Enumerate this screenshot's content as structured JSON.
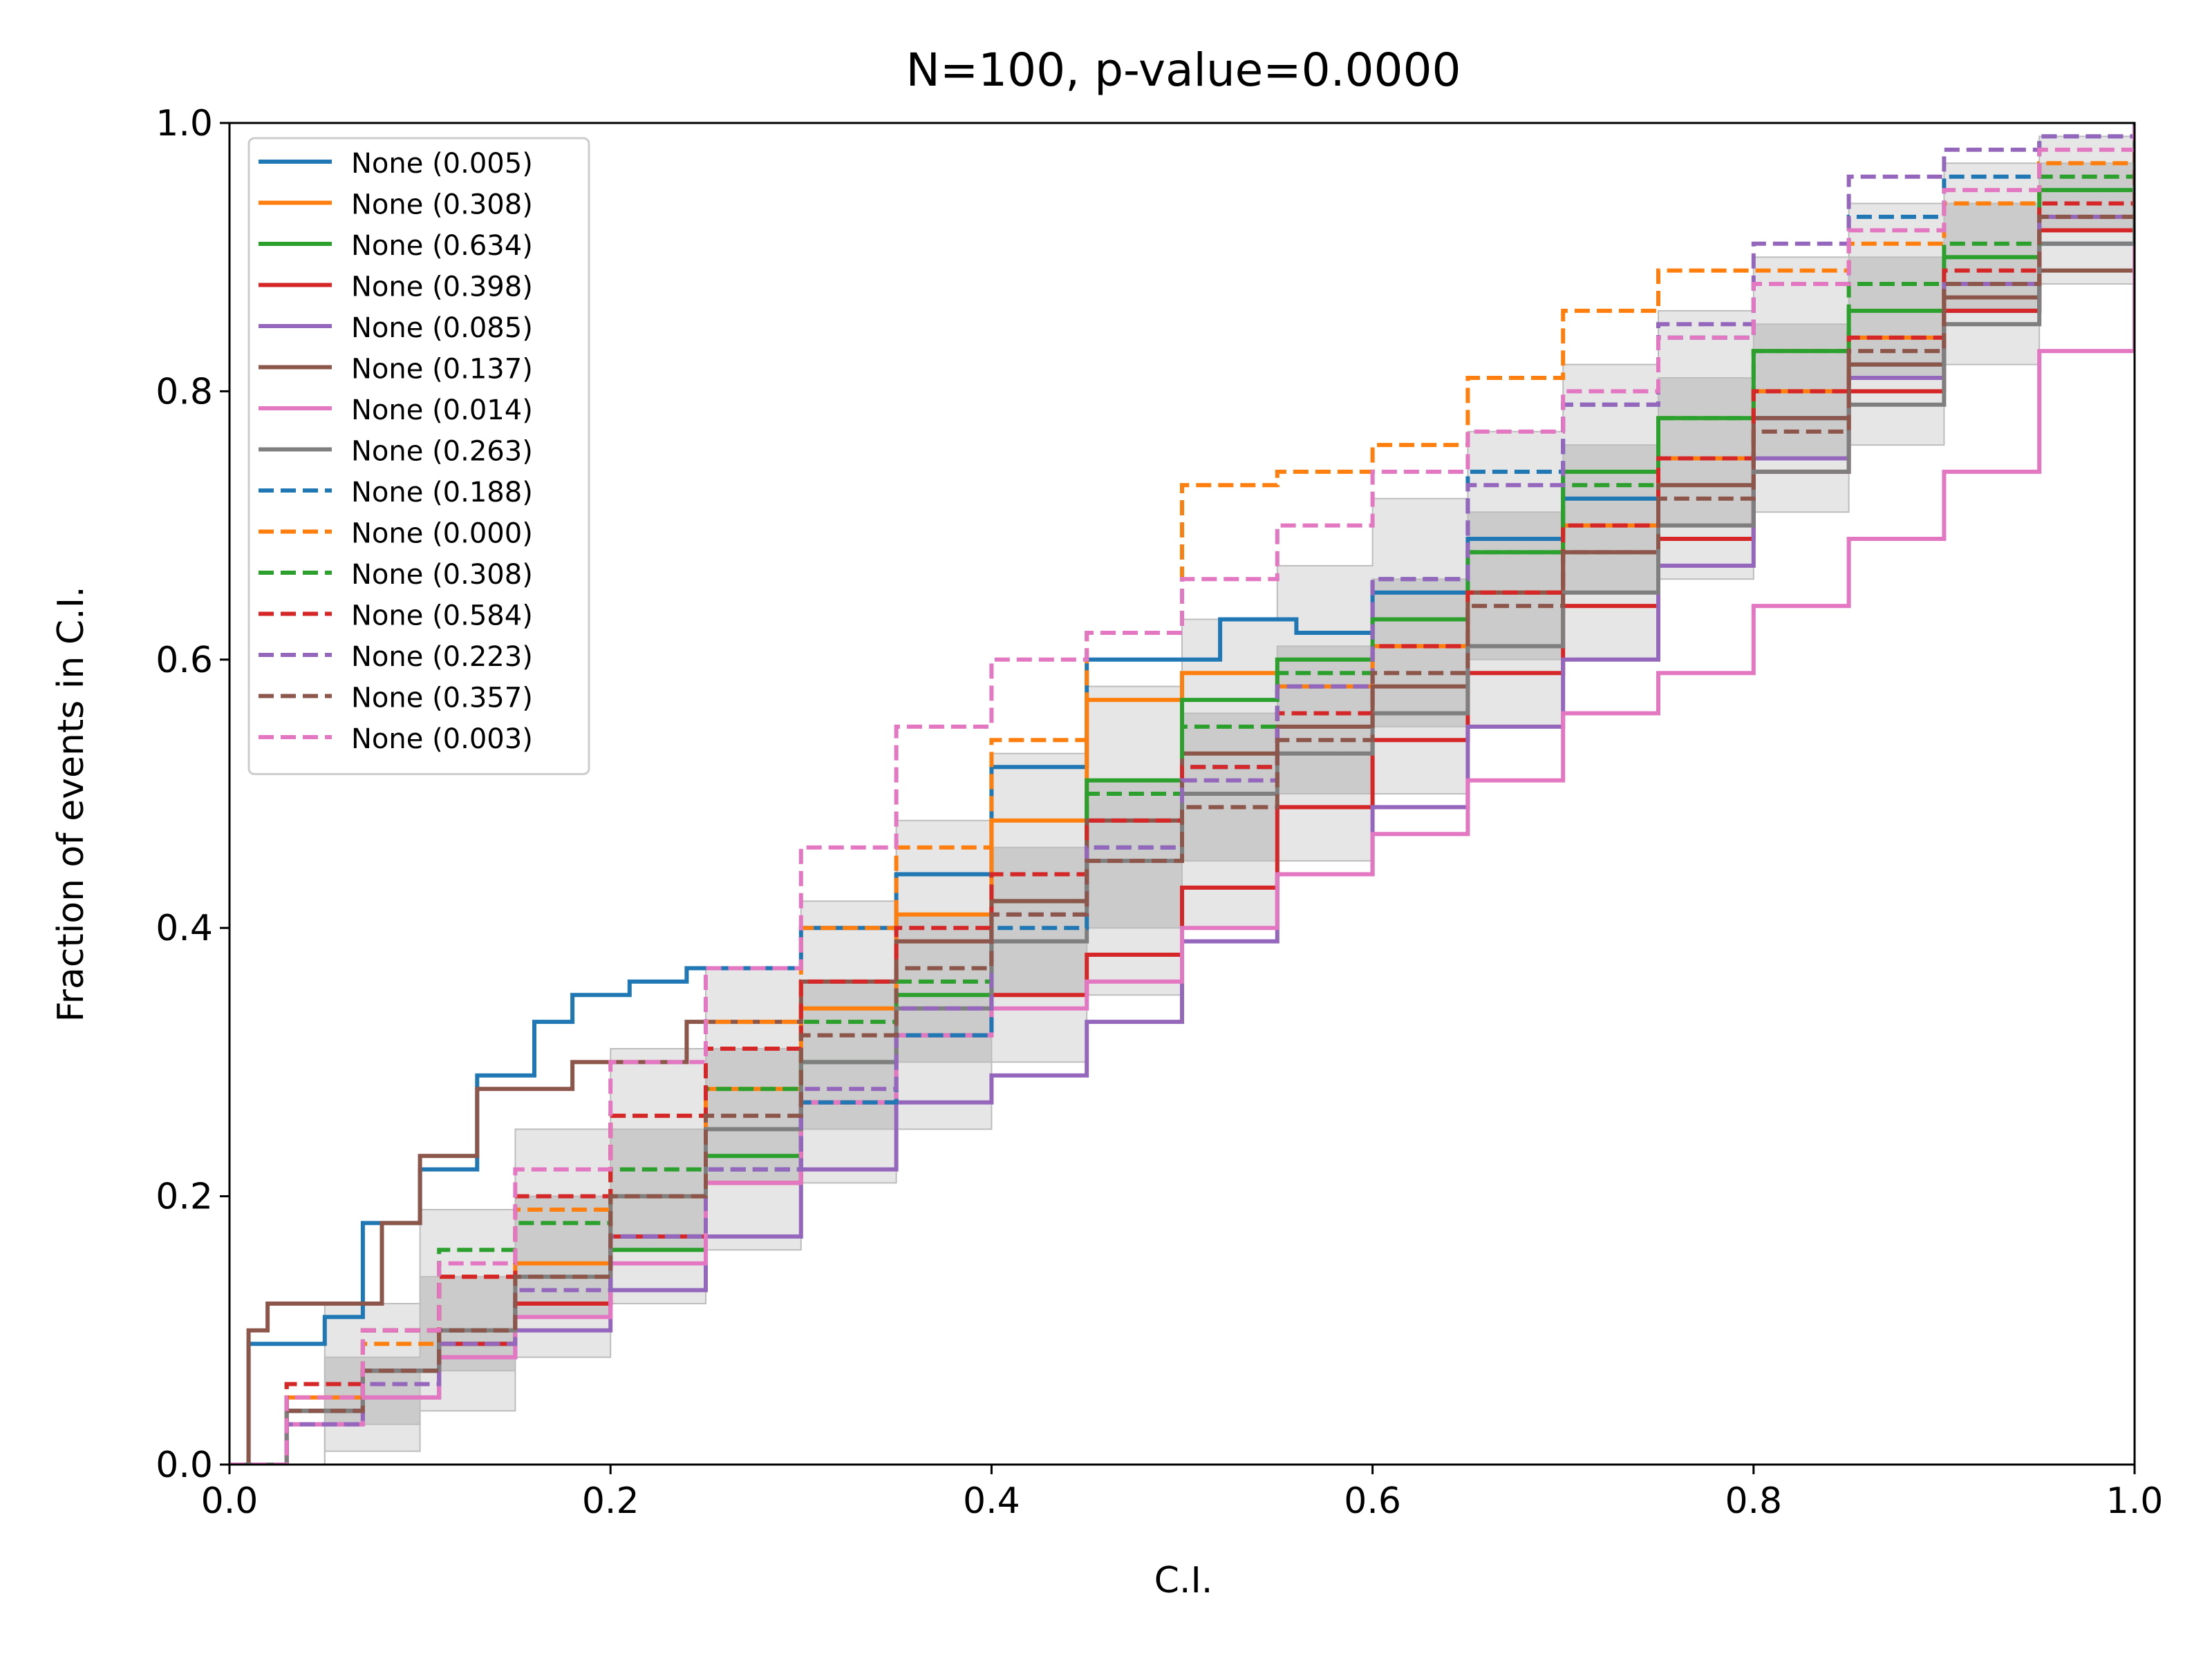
{
  "chart_data": {
    "type": "line",
    "title": "N=100, p-value=0.0000",
    "xlabel": "C.I.",
    "ylabel": "Fraction of events in C.I.",
    "xlim": [
      0,
      1
    ],
    "ylim": [
      0,
      1
    ],
    "xticks": [
      "0.0",
      "0.2",
      "0.4",
      "0.6",
      "0.8",
      "1.0"
    ],
    "yticks": [
      "0.0",
      "0.2",
      "0.4",
      "0.6",
      "0.8",
      "1.0"
    ],
    "grid": false,
    "legend_position": "upper-left",
    "confidence_bands": [
      {
        "level": "outer",
        "color": "#e6e6e6",
        "x": [
          0,
          0.05,
          0.1,
          0.15,
          0.2,
          0.25,
          0.3,
          0.35,
          0.4,
          0.45,
          0.5,
          0.55,
          0.6,
          0.65,
          0.7,
          0.75,
          0.8,
          0.85,
          0.9,
          0.95,
          1.0
        ],
        "lower": [
          0,
          0.01,
          0.04,
          0.08,
          0.12,
          0.16,
          0.21,
          0.25,
          0.3,
          0.35,
          0.4,
          0.45,
          0.5,
          0.55,
          0.6,
          0.66,
          0.71,
          0.76,
          0.82,
          0.88,
          1.0
        ],
        "upper": [
          0,
          0.12,
          0.19,
          0.25,
          0.31,
          0.37,
          0.42,
          0.48,
          0.53,
          0.58,
          0.63,
          0.67,
          0.72,
          0.77,
          0.82,
          0.86,
          0.9,
          0.94,
          0.97,
          0.99,
          1.0
        ]
      },
      {
        "level": "inner",
        "color": "#c8c8c8",
        "x": [
          0,
          0.05,
          0.1,
          0.15,
          0.2,
          0.25,
          0.3,
          0.35,
          0.4,
          0.45,
          0.5,
          0.55,
          0.6,
          0.65,
          0.7,
          0.75,
          0.8,
          0.85,
          0.9,
          0.95,
          1.0
        ],
        "lower": [
          0,
          0.03,
          0.07,
          0.11,
          0.16,
          0.21,
          0.25,
          0.3,
          0.35,
          0.4,
          0.45,
          0.5,
          0.55,
          0.6,
          0.65,
          0.7,
          0.75,
          0.81,
          0.86,
          0.92,
          1.0
        ],
        "upper": [
          0,
          0.08,
          0.14,
          0.2,
          0.25,
          0.31,
          0.36,
          0.41,
          0.46,
          0.51,
          0.56,
          0.61,
          0.66,
          0.71,
          0.76,
          0.81,
          0.85,
          0.9,
          0.94,
          0.97,
          1.0
        ]
      }
    ],
    "series": [
      {
        "name": "None (0.005)",
        "color": "#1f77b4",
        "dash": false,
        "x": [
          0,
          0.01,
          0.02,
          0.05,
          0.07,
          0.1,
          0.13,
          0.16,
          0.18,
          0.21,
          0.24,
          0.3,
          0.35,
          0.4,
          0.45,
          0.52,
          0.56,
          0.6,
          0.65,
          0.7,
          0.75,
          0.8,
          0.85,
          0.9,
          0.95,
          1.0
        ],
        "y": [
          0,
          0.09,
          0.09,
          0.11,
          0.18,
          0.22,
          0.29,
          0.33,
          0.35,
          0.36,
          0.37,
          0.4,
          0.44,
          0.52,
          0.6,
          0.63,
          0.62,
          0.65,
          0.69,
          0.72,
          0.75,
          0.78,
          0.82,
          0.86,
          0.91,
          1.0
        ]
      },
      {
        "name": "None (0.308)",
        "color": "#ff7f0e",
        "dash": false,
        "x": [
          0,
          0.03,
          0.07,
          0.11,
          0.15,
          0.2,
          0.25,
          0.3,
          0.35,
          0.4,
          0.45,
          0.5,
          0.55,
          0.6,
          0.65,
          0.7,
          0.75,
          0.8,
          0.85,
          0.9,
          0.95,
          1.0
        ],
        "y": [
          0,
          0.05,
          0.07,
          0.1,
          0.15,
          0.2,
          0.28,
          0.34,
          0.41,
          0.48,
          0.57,
          0.59,
          0.58,
          0.61,
          0.65,
          0.7,
          0.75,
          0.8,
          0.84,
          0.88,
          0.93,
          1.0
        ]
      },
      {
        "name": "None (0.634)",
        "color": "#2ca02c",
        "dash": false,
        "x": [
          0,
          0.03,
          0.07,
          0.11,
          0.15,
          0.2,
          0.25,
          0.3,
          0.35,
          0.4,
          0.45,
          0.5,
          0.55,
          0.6,
          0.65,
          0.7,
          0.75,
          0.8,
          0.85,
          0.9,
          0.95,
          1.0
        ],
        "y": [
          0,
          0.04,
          0.07,
          0.09,
          0.12,
          0.16,
          0.23,
          0.3,
          0.35,
          0.42,
          0.51,
          0.57,
          0.6,
          0.63,
          0.68,
          0.74,
          0.78,
          0.83,
          0.86,
          0.9,
          0.95,
          1.0
        ]
      },
      {
        "name": "None (0.398)",
        "color": "#d62728",
        "dash": false,
        "x": [
          0,
          0.03,
          0.07,
          0.11,
          0.15,
          0.2,
          0.25,
          0.3,
          0.35,
          0.4,
          0.45,
          0.5,
          0.55,
          0.6,
          0.65,
          0.7,
          0.75,
          0.8,
          0.85,
          0.9,
          0.95,
          1.0
        ],
        "y": [
          0,
          0.04,
          0.07,
          0.09,
          0.12,
          0.17,
          0.21,
          0.27,
          0.32,
          0.35,
          0.38,
          0.43,
          0.49,
          0.54,
          0.59,
          0.64,
          0.69,
          0.74,
          0.8,
          0.86,
          0.92,
          1.0
        ]
      },
      {
        "name": "None (0.085)",
        "color": "#9467bd",
        "dash": false,
        "x": [
          0,
          0.03,
          0.07,
          0.11,
          0.15,
          0.2,
          0.25,
          0.3,
          0.35,
          0.4,
          0.45,
          0.5,
          0.55,
          0.6,
          0.65,
          0.7,
          0.75,
          0.8,
          0.85,
          0.9,
          0.95,
          1.0
        ],
        "y": [
          0,
          0.03,
          0.05,
          0.08,
          0.1,
          0.13,
          0.17,
          0.22,
          0.27,
          0.29,
          0.33,
          0.39,
          0.44,
          0.49,
          0.55,
          0.6,
          0.67,
          0.75,
          0.81,
          0.88,
          0.93,
          1.0
        ]
      },
      {
        "name": "None (0.137)",
        "color": "#8c564b",
        "dash": false,
        "x": [
          0,
          0.01,
          0.02,
          0.05,
          0.08,
          0.1,
          0.13,
          0.18,
          0.24,
          0.3,
          0.35,
          0.4,
          0.45,
          0.5,
          0.55,
          0.6,
          0.65,
          0.7,
          0.75,
          0.8,
          0.85,
          0.9,
          0.95,
          1.0
        ],
        "y": [
          0,
          0.1,
          0.12,
          0.12,
          0.18,
          0.23,
          0.28,
          0.3,
          0.33,
          0.36,
          0.39,
          0.42,
          0.48,
          0.53,
          0.55,
          0.58,
          0.65,
          0.68,
          0.73,
          0.78,
          0.82,
          0.87,
          0.89,
          1.0
        ]
      },
      {
        "name": "None (0.014)",
        "color": "#e377c2",
        "dash": false,
        "x": [
          0,
          0.03,
          0.07,
          0.11,
          0.15,
          0.2,
          0.25,
          0.3,
          0.35,
          0.4,
          0.45,
          0.5,
          0.55,
          0.6,
          0.65,
          0.7,
          0.75,
          0.8,
          0.85,
          0.9,
          0.95,
          1.0
        ],
        "y": [
          0,
          0.03,
          0.05,
          0.08,
          0.11,
          0.15,
          0.21,
          0.27,
          0.32,
          0.34,
          0.36,
          0.4,
          0.44,
          0.47,
          0.51,
          0.56,
          0.59,
          0.64,
          0.69,
          0.74,
          0.83,
          1.0
        ]
      },
      {
        "name": "None (0.263)",
        "color": "#7f7f7f",
        "dash": false,
        "x": [
          0,
          0.03,
          0.07,
          0.11,
          0.15,
          0.2,
          0.25,
          0.3,
          0.35,
          0.4,
          0.45,
          0.5,
          0.55,
          0.6,
          0.65,
          0.7,
          0.75,
          0.8,
          0.85,
          0.9,
          0.95,
          1.0
        ],
        "y": [
          0,
          0.04,
          0.07,
          0.1,
          0.14,
          0.2,
          0.25,
          0.3,
          0.34,
          0.39,
          0.45,
          0.5,
          0.53,
          0.56,
          0.61,
          0.65,
          0.7,
          0.74,
          0.79,
          0.85,
          0.91,
          1.0
        ]
      },
      {
        "name": "None (0.188)",
        "color": "#1f77b4",
        "dash": true,
        "x": [
          0,
          0.03,
          0.07,
          0.11,
          0.15,
          0.2,
          0.25,
          0.3,
          0.35,
          0.4,
          0.45,
          0.5,
          0.55,
          0.6,
          0.65,
          0.7,
          0.75,
          0.8,
          0.85,
          0.9,
          0.95,
          1.0
        ],
        "y": [
          0,
          0.04,
          0.07,
          0.1,
          0.13,
          0.17,
          0.22,
          0.27,
          0.32,
          0.4,
          0.46,
          0.52,
          0.58,
          0.66,
          0.74,
          0.79,
          0.84,
          0.88,
          0.93,
          0.96,
          0.99,
          1.0
        ]
      },
      {
        "name": "None (0.000)",
        "color": "#ff7f0e",
        "dash": true,
        "x": [
          0,
          0.03,
          0.07,
          0.11,
          0.15,
          0.2,
          0.25,
          0.3,
          0.35,
          0.4,
          0.45,
          0.5,
          0.55,
          0.6,
          0.65,
          0.7,
          0.75,
          0.8,
          0.85,
          0.9,
          0.95,
          1.0
        ],
        "y": [
          0,
          0.05,
          0.09,
          0.14,
          0.19,
          0.26,
          0.33,
          0.4,
          0.46,
          0.54,
          0.62,
          0.73,
          0.74,
          0.76,
          0.81,
          0.86,
          0.89,
          0.89,
          0.91,
          0.94,
          0.97,
          1.0
        ]
      },
      {
        "name": "None (0.308)",
        "color": "#2ca02c",
        "dash": true,
        "x": [
          0,
          0.03,
          0.07,
          0.11,
          0.15,
          0.2,
          0.25,
          0.3,
          0.35,
          0.4,
          0.45,
          0.5,
          0.55,
          0.6,
          0.65,
          0.7,
          0.75,
          0.8,
          0.85,
          0.9,
          0.95,
          1.0
        ],
        "y": [
          0,
          0.06,
          0.1,
          0.16,
          0.18,
          0.22,
          0.28,
          0.33,
          0.36,
          0.44,
          0.5,
          0.55,
          0.59,
          0.63,
          0.68,
          0.73,
          0.78,
          0.83,
          0.88,
          0.91,
          0.96,
          1.0
        ]
      },
      {
        "name": "None (0.584)",
        "color": "#d62728",
        "dash": true,
        "x": [
          0,
          0.03,
          0.07,
          0.11,
          0.15,
          0.2,
          0.25,
          0.3,
          0.35,
          0.4,
          0.45,
          0.5,
          0.55,
          0.6,
          0.65,
          0.7,
          0.75,
          0.8,
          0.85,
          0.9,
          0.95,
          1.0
        ],
        "y": [
          0,
          0.06,
          0.1,
          0.14,
          0.2,
          0.26,
          0.31,
          0.36,
          0.4,
          0.44,
          0.48,
          0.52,
          0.56,
          0.61,
          0.65,
          0.7,
          0.75,
          0.8,
          0.84,
          0.89,
          0.94,
          1.0
        ]
      },
      {
        "name": "None (0.223)",
        "color": "#9467bd",
        "dash": true,
        "x": [
          0,
          0.03,
          0.07,
          0.11,
          0.15,
          0.2,
          0.25,
          0.3,
          0.35,
          0.4,
          0.45,
          0.5,
          0.55,
          0.6,
          0.65,
          0.7,
          0.75,
          0.8,
          0.85,
          0.9,
          0.95,
          1.0
        ],
        "y": [
          0,
          0.03,
          0.06,
          0.09,
          0.13,
          0.17,
          0.22,
          0.28,
          0.34,
          0.41,
          0.46,
          0.51,
          0.58,
          0.66,
          0.73,
          0.79,
          0.85,
          0.91,
          0.96,
          0.98,
          0.99,
          1.0
        ]
      },
      {
        "name": "None (0.357)",
        "color": "#8c564b",
        "dash": true,
        "x": [
          0,
          0.03,
          0.07,
          0.11,
          0.15,
          0.2,
          0.25,
          0.3,
          0.35,
          0.4,
          0.45,
          0.5,
          0.55,
          0.6,
          0.65,
          0.7,
          0.75,
          0.8,
          0.85,
          0.9,
          0.95,
          1.0
        ],
        "y": [
          0,
          0.04,
          0.07,
          0.1,
          0.14,
          0.2,
          0.26,
          0.32,
          0.37,
          0.41,
          0.45,
          0.49,
          0.54,
          0.59,
          0.64,
          0.68,
          0.72,
          0.77,
          0.83,
          0.88,
          0.93,
          1.0
        ]
      },
      {
        "name": "None (0.003)",
        "color": "#e377c2",
        "dash": true,
        "x": [
          0,
          0.03,
          0.07,
          0.11,
          0.15,
          0.2,
          0.25,
          0.3,
          0.35,
          0.4,
          0.45,
          0.5,
          0.55,
          0.6,
          0.65,
          0.7,
          0.75,
          0.8,
          0.85,
          0.9,
          0.95,
          1.0
        ],
        "y": [
          0,
          0.05,
          0.1,
          0.15,
          0.22,
          0.3,
          0.37,
          0.46,
          0.55,
          0.6,
          0.62,
          0.66,
          0.7,
          0.74,
          0.77,
          0.8,
          0.84,
          0.88,
          0.92,
          0.95,
          0.98,
          1.0
        ]
      }
    ]
  }
}
